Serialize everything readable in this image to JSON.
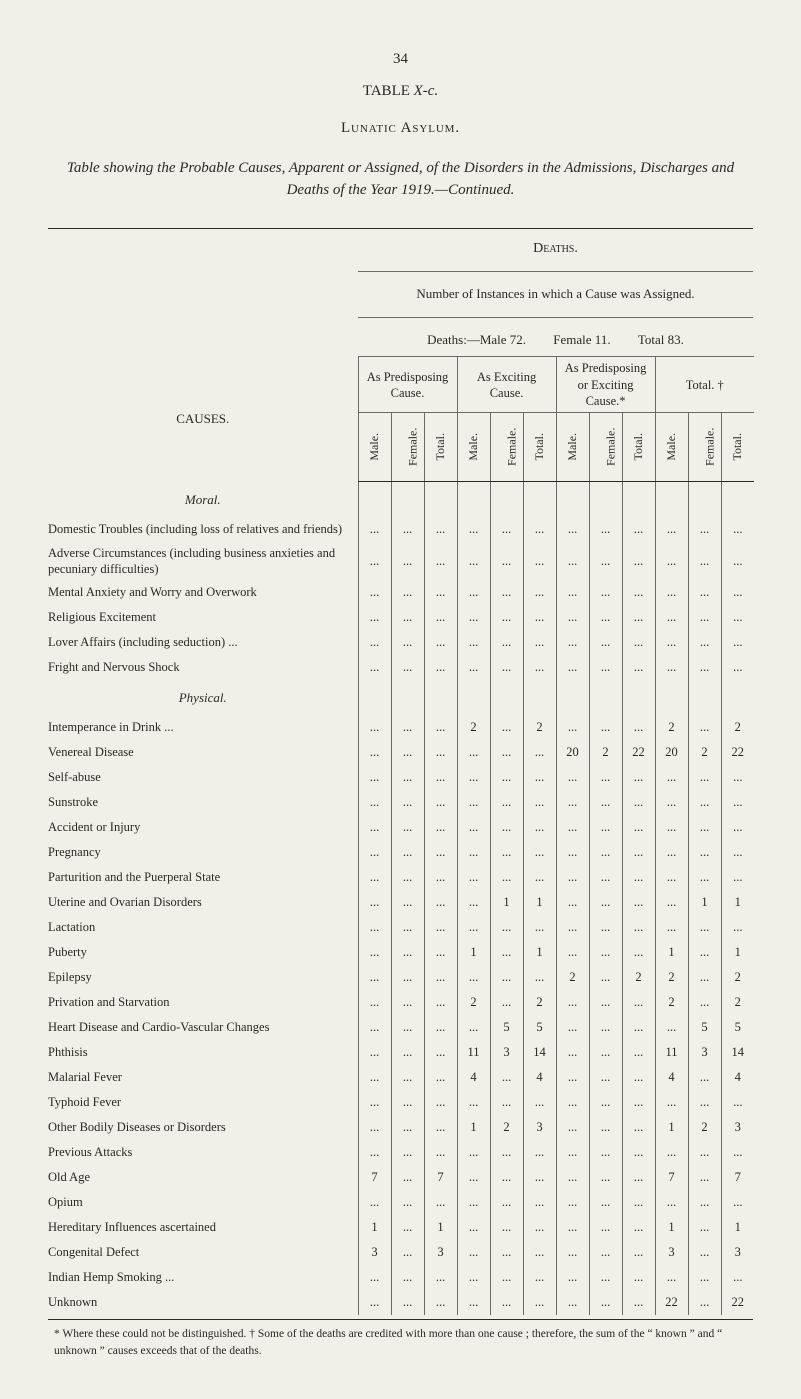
{
  "page_number": "34",
  "table_label_prefix": "TABLE ",
  "table_label_ital": "X-c.",
  "section_title": "Lunatic Asylum.",
  "subtitle": "Table showing the Probable Causes, Apparent or Assigned, of the Disorders in the Admissions, Discharges and Deaths of the Year 1919.—Continued.",
  "deaths_label": "Deaths.",
  "assigned_line": "Number of Instances in which a Cause was Assigned.",
  "breakdown": {
    "male": "Deaths:—Male 72.",
    "female": "Female 11.",
    "total": "Total 83."
  },
  "causes_head": "CAUSES.",
  "group_heads": [
    "As Predisposing Cause.",
    "As Exciting Cause.",
    "As Predisposing or Exciting Cause.*",
    "Total. †"
  ],
  "subheads": [
    "Male.",
    "Female.",
    "Total.",
    "Male.",
    "Female.",
    "Total.",
    "Male.",
    "Female.",
    "Total.",
    "Male.",
    "Female.",
    "Total."
  ],
  "section_moral": "Moral.",
  "section_physical": "Physical.",
  "dots": "...",
  "rows_moral": [
    {
      "label": "Domestic Troubles (including loss of relatives and friends)",
      "vals": [
        "...",
        "...",
        "...",
        "...",
        "...",
        "...",
        "...",
        "...",
        "...",
        "...",
        "...",
        "..."
      ]
    },
    {
      "label": "Adverse Circumstances (including business anxieties and pecuniary difficulties)",
      "vals": [
        "...",
        "...",
        "...",
        "...",
        "...",
        "...",
        "...",
        "...",
        "...",
        "...",
        "...",
        "..."
      ]
    },
    {
      "label": "Mental Anxiety and Worry and Overwork",
      "vals": [
        "...",
        "...",
        "...",
        "...",
        "...",
        "...",
        "...",
        "...",
        "...",
        "...",
        "...",
        "..."
      ]
    },
    {
      "label": "Religious Excitement",
      "vals": [
        "...",
        "...",
        "...",
        "...",
        "...",
        "...",
        "...",
        "...",
        "...",
        "...",
        "...",
        "..."
      ]
    },
    {
      "label": "Lover Affairs (including seduction) ...",
      "vals": [
        "...",
        "...",
        "...",
        "...",
        "...",
        "...",
        "...",
        "...",
        "...",
        "...",
        "...",
        "..."
      ]
    },
    {
      "label": "Fright and Nervous Shock",
      "vals": [
        "...",
        "...",
        "...",
        "...",
        "...",
        "...",
        "...",
        "...",
        "...",
        "...",
        "...",
        "..."
      ]
    }
  ],
  "rows_physical": [
    {
      "label": "Intemperance in Drink ...",
      "vals": [
        "...",
        "...",
        "...",
        "2",
        "...",
        "2",
        "...",
        "...",
        "...",
        "2",
        "...",
        "2"
      ]
    },
    {
      "label": "Venereal Disease",
      "vals": [
        "...",
        "...",
        "...",
        "...",
        "...",
        "...",
        "20",
        "2",
        "22",
        "20",
        "2",
        "22"
      ]
    },
    {
      "label": "Self-abuse",
      "vals": [
        "...",
        "...",
        "...",
        "...",
        "...",
        "...",
        "...",
        "...",
        "...",
        "...",
        "...",
        "..."
      ]
    },
    {
      "label": "Sunstroke",
      "vals": [
        "...",
        "...",
        "...",
        "...",
        "...",
        "...",
        "...",
        "...",
        "...",
        "...",
        "...",
        "..."
      ]
    },
    {
      "label": "Accident or Injury",
      "vals": [
        "...",
        "...",
        "...",
        "...",
        "...",
        "...",
        "...",
        "...",
        "...",
        "...",
        "...",
        "..."
      ]
    },
    {
      "label": "Pregnancy",
      "vals": [
        "...",
        "...",
        "...",
        "...",
        "...",
        "...",
        "...",
        "...",
        "...",
        "...",
        "...",
        "..."
      ]
    },
    {
      "label": "Parturition and the Puerperal State",
      "vals": [
        "...",
        "...",
        "...",
        "...",
        "...",
        "...",
        "...",
        "...",
        "...",
        "...",
        "...",
        "..."
      ]
    },
    {
      "label": "Uterine and Ovarian Disorders",
      "vals": [
        "...",
        "...",
        "...",
        "...",
        "1",
        "1",
        "...",
        "...",
        "...",
        "...",
        "1",
        "1"
      ]
    },
    {
      "label": "Lactation",
      "vals": [
        "...",
        "...",
        "...",
        "...",
        "...",
        "...",
        "...",
        "...",
        "...",
        "...",
        "...",
        "..."
      ]
    },
    {
      "label": "Puberty",
      "vals": [
        "...",
        "...",
        "...",
        "1",
        "...",
        "1",
        "...",
        "...",
        "...",
        "1",
        "...",
        "1"
      ]
    },
    {
      "label": "Epilepsy",
      "vals": [
        "...",
        "...",
        "...",
        "...",
        "...",
        "...",
        "2",
        "...",
        "2",
        "2",
        "...",
        "2"
      ]
    },
    {
      "label": "Privation and Starvation",
      "vals": [
        "...",
        "...",
        "...",
        "2",
        "...",
        "2",
        "...",
        "...",
        "...",
        "2",
        "...",
        "2"
      ]
    },
    {
      "label": "Heart Disease and Cardio-Vascular Changes",
      "vals": [
        "...",
        "...",
        "...",
        "...",
        "5",
        "5",
        "...",
        "...",
        "...",
        "...",
        "5",
        "5"
      ]
    },
    {
      "label": "Phthisis",
      "vals": [
        "...",
        "...",
        "...",
        "11",
        "3",
        "14",
        "...",
        "...",
        "...",
        "11",
        "3",
        "14"
      ]
    },
    {
      "label": "Malarial Fever",
      "vals": [
        "...",
        "...",
        "...",
        "4",
        "...",
        "4",
        "...",
        "...",
        "...",
        "4",
        "...",
        "4"
      ]
    },
    {
      "label": "Typhoid Fever",
      "vals": [
        "...",
        "...",
        "...",
        "...",
        "...",
        "...",
        "...",
        "...",
        "...",
        "...",
        "...",
        "..."
      ]
    },
    {
      "label": "Other Bodily Diseases or Disorders",
      "vals": [
        "...",
        "...",
        "...",
        "1",
        "2",
        "3",
        "...",
        "...",
        "...",
        "1",
        "2",
        "3"
      ]
    },
    {
      "label": "Previous Attacks",
      "vals": [
        "...",
        "...",
        "...",
        "...",
        "...",
        "...",
        "...",
        "...",
        "...",
        "...",
        "...",
        "..."
      ]
    },
    {
      "label": "Old Age",
      "vals": [
        "7",
        "...",
        "7",
        "...",
        "...",
        "...",
        "...",
        "...",
        "...",
        "7",
        "...",
        "7"
      ]
    },
    {
      "label": "Opium",
      "vals": [
        "...",
        "...",
        "...",
        "...",
        "...",
        "...",
        "...",
        "...",
        "...",
        "...",
        "...",
        "..."
      ]
    },
    {
      "label": "Hereditary Influences ascertained",
      "vals": [
        "1",
        "...",
        "1",
        "...",
        "...",
        "...",
        "...",
        "...",
        "...",
        "1",
        "...",
        "1"
      ]
    },
    {
      "label": "Congenital Defect",
      "vals": [
        "3",
        "...",
        "3",
        "...",
        "...",
        "...",
        "...",
        "...",
        "...",
        "3",
        "...",
        "3"
      ]
    },
    {
      "label": "Indian Hemp Smoking ...",
      "vals": [
        "...",
        "...",
        "...",
        "...",
        "...",
        "...",
        "...",
        "...",
        "...",
        "...",
        "...",
        "..."
      ]
    },
    {
      "label": "Unknown",
      "vals": [
        "...",
        "...",
        "...",
        "...",
        "...",
        "...",
        "...",
        "...",
        "...",
        "22",
        "...",
        "22"
      ]
    }
  ],
  "footnote": "* Where these could not be distinguished.    † Some of the deaths are credited with more than one cause ; therefore, the sum of the “ known ” and “ unknown ” causes exceeds that of the deaths."
}
